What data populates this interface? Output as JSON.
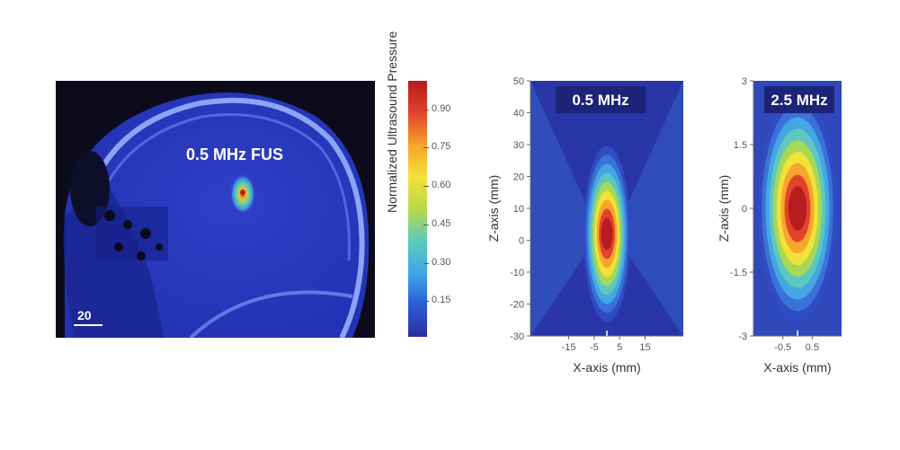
{
  "head_panel": {
    "label": "0.5 MHz FUS",
    "scale_bar_label": "20"
  },
  "colorbar": {
    "label": "Normalized Ultrasound Pressure",
    "ticks": [
      "0.90",
      "0.75",
      "0.60",
      "0.45",
      "0.30",
      "0.15"
    ],
    "colors": [
      "#2a2f9e",
      "#2c5bd8",
      "#3fa8e6",
      "#5ccbb8",
      "#b9d94a",
      "#f3e23a",
      "#f5a52a",
      "#e0422a",
      "#b51b1e"
    ]
  },
  "chart_data": [
    {
      "type": "heatmap",
      "title": "0.5 MHz",
      "xlabel": "X-axis (mm)",
      "ylabel": "Z-axis (mm)",
      "xticks": [
        "-15",
        "-5",
        "5",
        "15"
      ],
      "yticks": [
        "50",
        "40",
        "30",
        "20",
        "10",
        "0",
        "-10",
        "-20",
        "-30"
      ],
      "xlim": [
        -30,
        30
      ],
      "ylim": [
        -30,
        50
      ],
      "focus": {
        "x": 0,
        "z": 2
      }
    },
    {
      "type": "heatmap",
      "title": "2.5 MHz",
      "xlabel": "X-axis (mm)",
      "ylabel": "Z-axis (mm)",
      "xticks": [
        "-0.5",
        "0.5"
      ],
      "yticks": [
        "3",
        "1.5",
        "0",
        "-1.5",
        "-3"
      ],
      "xlim": [
        -1.5,
        1.5
      ],
      "ylim": [
        -3,
        3
      ],
      "focus": {
        "x": 0,
        "z": 0
      }
    }
  ]
}
